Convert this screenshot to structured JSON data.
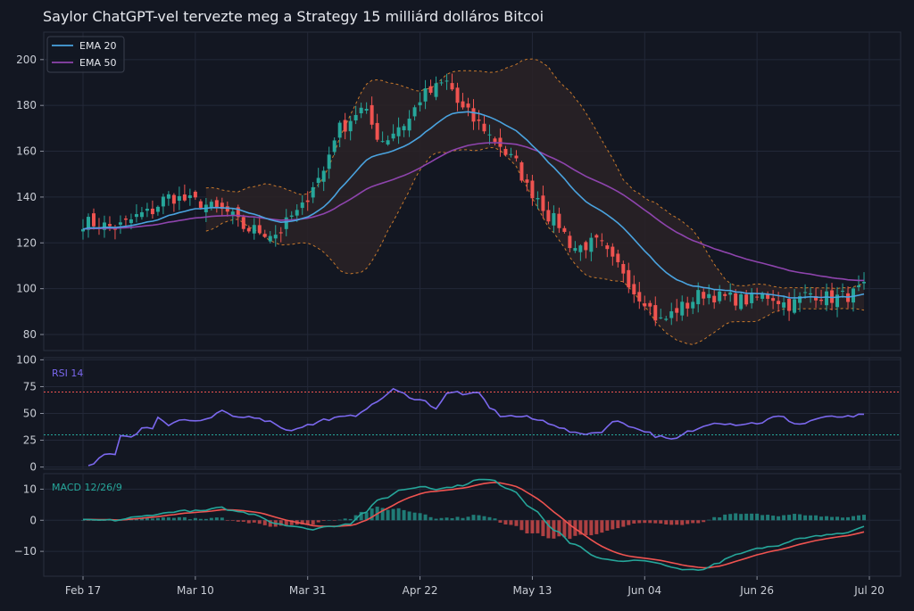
{
  "title": "Saylor ChatGPT-vel tervezte meg a Strategy 15 milliárd dolláros Bitcoi",
  "colors": {
    "background": "#131722",
    "grid": "#232838",
    "axis_text": "#c8ccd4",
    "up_candle": "#26a69a",
    "down_candle": "#ef5350",
    "ema20": "#4aa3df",
    "ema50": "#8e44ad",
    "bollinger": "#c8792c",
    "rsi": "#7b68ee",
    "macd": "#26a69a",
    "signal": "#ef5350"
  },
  "x_axis": {
    "tick_labels": [
      "Feb 17",
      "Mar 10",
      "Mar 31",
      "Apr 22",
      "May 13",
      "Jun 04",
      "Jun 26",
      "Jul 20"
    ]
  },
  "chart_data": [
    {
      "type": "candlestick",
      "panel": "price",
      "legend": [
        "EMA 20",
        "EMA 50"
      ],
      "legend_position": "top-left",
      "ylim": [
        73,
        212
      ],
      "yticks": [
        80,
        100,
        120,
        140,
        160,
        180,
        200
      ],
      "ytick_labels": [
        "80",
        "100",
        "120",
        "140",
        "160",
        "180",
        "200"
      ],
      "grid": true,
      "notes_series": "Bollinger bands shown as dashed envelope with shaded fill"
    },
    {
      "type": "line",
      "panel": "rsi",
      "label": "RSI 14",
      "ylim": [
        -2,
        102
      ],
      "yticks": [
        0,
        25,
        50,
        75,
        100
      ],
      "ytick_labels": [
        "0",
        "25",
        "50",
        "75",
        "100"
      ],
      "overbought": 70,
      "oversold": 30,
      "grid": true
    },
    {
      "type": "line",
      "panel": "macd",
      "label": "MACD 12/26/9",
      "ylim": [
        -18,
        15
      ],
      "yticks": [
        10,
        0,
        -10
      ],
      "ytick_labels": [
        "10",
        "0",
        "−10"
      ],
      "grid": true
    }
  ],
  "series": {
    "anchors": [
      [
        0,
        129
      ],
      [
        6,
        127
      ],
      [
        12,
        133
      ],
      [
        16,
        140
      ],
      [
        21,
        138
      ],
      [
        26,
        134
      ],
      [
        31,
        126
      ],
      [
        36,
        124
      ],
      [
        40,
        133
      ],
      [
        44,
        148
      ],
      [
        48,
        170
      ],
      [
        52,
        178
      ],
      [
        56,
        165
      ],
      [
        60,
        172
      ],
      [
        64,
        185
      ],
      [
        68,
        190
      ],
      [
        71,
        178
      ],
      [
        74,
        172
      ],
      [
        77,
        165
      ],
      [
        80,
        157
      ],
      [
        84,
        142
      ],
      [
        88,
        130
      ],
      [
        92,
        118
      ],
      [
        96,
        120
      ],
      [
        100,
        110
      ],
      [
        104,
        97
      ],
      [
        108,
        86
      ],
      [
        112,
        92
      ],
      [
        116,
        98
      ],
      [
        120,
        96
      ],
      [
        124,
        95
      ],
      [
        128,
        97
      ],
      [
        132,
        93
      ],
      [
        136,
        98
      ],
      [
        140,
        96
      ],
      [
        143,
        97
      ],
      [
        146,
        100
      ]
    ],
    "rsi_anchors": [
      [
        1,
        1
      ],
      [
        4,
        12
      ],
      [
        6,
        13
      ],
      [
        7,
        29
      ],
      [
        9,
        27
      ],
      [
        11,
        37
      ],
      [
        13,
        36
      ],
      [
        14,
        47
      ],
      [
        16,
        40
      ],
      [
        18,
        44
      ],
      [
        21,
        43
      ],
      [
        24,
        45
      ],
      [
        26,
        53
      ],
      [
        28,
        46
      ],
      [
        32,
        47
      ],
      [
        36,
        41
      ],
      [
        38,
        34
      ],
      [
        42,
        39
      ],
      [
        46,
        45
      ],
      [
        50,
        47
      ],
      [
        54,
        57
      ],
      [
        56,
        65
      ],
      [
        58,
        72
      ],
      [
        60,
        68
      ],
      [
        62,
        64
      ],
      [
        64,
        61
      ],
      [
        66,
        55
      ],
      [
        68,
        68
      ],
      [
        70,
        70
      ],
      [
        72,
        67
      ],
      [
        74,
        69
      ],
      [
        76,
        56
      ],
      [
        78,
        48
      ],
      [
        82,
        47
      ],
      [
        86,
        43
      ],
      [
        88,
        40
      ],
      [
        90,
        35
      ],
      [
        92,
        31
      ],
      [
        96,
        32
      ],
      [
        100,
        43
      ],
      [
        104,
        35
      ],
      [
        108,
        28
      ],
      [
        110,
        25
      ],
      [
        114,
        34
      ],
      [
        118,
        42
      ],
      [
        122,
        40
      ],
      [
        126,
        41
      ],
      [
        130,
        47
      ],
      [
        134,
        40
      ],
      [
        138,
        46
      ],
      [
        142,
        47
      ],
      [
        144,
        46
      ],
      [
        146,
        50
      ]
    ],
    "macd_anchors": [
      [
        0,
        0
      ],
      [
        6,
        0
      ],
      [
        10,
        1
      ],
      [
        14,
        2
      ],
      [
        18,
        3
      ],
      [
        22,
        3
      ],
      [
        26,
        4
      ],
      [
        28,
        3
      ],
      [
        32,
        2
      ],
      [
        36,
        -1
      ],
      [
        40,
        -2
      ],
      [
        42,
        -3
      ],
      [
        46,
        -2
      ],
      [
        50,
        -1
      ],
      [
        52,
        2
      ],
      [
        56,
        7
      ],
      [
        60,
        10
      ],
      [
        64,
        11
      ],
      [
        66,
        10
      ],
      [
        70,
        11
      ],
      [
        74,
        13
      ],
      [
        76,
        13
      ],
      [
        80,
        10
      ],
      [
        84,
        4
      ],
      [
        88,
        -3
      ],
      [
        92,
        -8
      ],
      [
        96,
        -12
      ],
      [
        100,
        -13
      ],
      [
        104,
        -13
      ],
      [
        108,
        -14
      ],
      [
        112,
        -16
      ],
      [
        116,
        -16
      ],
      [
        118,
        -14
      ],
      [
        122,
        -11
      ],
      [
        126,
        -9
      ],
      [
        130,
        -8
      ],
      [
        134,
        -6
      ],
      [
        138,
        -5
      ],
      [
        142,
        -4
      ],
      [
        146,
        -2
      ]
    ]
  }
}
